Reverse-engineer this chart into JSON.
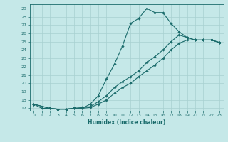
{
  "title": "",
  "xlabel": "Humidex (Indice chaleur)",
  "bg_color": "#c5e8e8",
  "line_color": "#1a6b6b",
  "grid_color": "#a8d0d0",
  "xlim": [
    -0.5,
    23.5
  ],
  "ylim": [
    16.7,
    29.5
  ],
  "xticks": [
    0,
    1,
    2,
    3,
    4,
    5,
    6,
    7,
    8,
    9,
    10,
    11,
    12,
    13,
    14,
    15,
    16,
    17,
    18,
    19,
    20,
    21,
    22,
    23
  ],
  "yticks": [
    17,
    18,
    19,
    20,
    21,
    22,
    23,
    24,
    25,
    26,
    27,
    28,
    29
  ],
  "line1_x": [
    0,
    1,
    2,
    3,
    4,
    5,
    6,
    7,
    8,
    9,
    10,
    11,
    12,
    13,
    14,
    15,
    16,
    17,
    18,
    19,
    20,
    21,
    22,
    23
  ],
  "line1_y": [
    17.5,
    17.0,
    17.0,
    16.9,
    16.9,
    17.0,
    17.0,
    17.5,
    18.5,
    20.5,
    22.3,
    24.5,
    27.2,
    27.8,
    29.0,
    28.5,
    28.5,
    27.2,
    26.2,
    25.5,
    25.2,
    25.2,
    25.2,
    24.9
  ],
  "line2_x": [
    0,
    2,
    3,
    4,
    5,
    6,
    7,
    8,
    9,
    10,
    11,
    12,
    13,
    14,
    15,
    16,
    17,
    18,
    19,
    20,
    21,
    22,
    23
  ],
  "line2_y": [
    17.5,
    17.0,
    16.9,
    16.9,
    17.0,
    17.1,
    17.2,
    17.8,
    18.5,
    19.5,
    20.2,
    20.8,
    21.5,
    22.5,
    23.2,
    24.0,
    25.0,
    25.8,
    25.5,
    25.2,
    25.2,
    25.2,
    24.9
  ],
  "line3_x": [
    0,
    2,
    3,
    4,
    5,
    6,
    7,
    8,
    9,
    10,
    11,
    12,
    13,
    14,
    15,
    16,
    17,
    18,
    19,
    20,
    21,
    22,
    23
  ],
  "line3_y": [
    17.5,
    17.0,
    16.9,
    16.9,
    17.0,
    17.0,
    17.1,
    17.5,
    18.0,
    18.8,
    19.5,
    20.0,
    20.8,
    21.5,
    22.2,
    23.0,
    24.0,
    24.8,
    25.2,
    25.2,
    25.2,
    25.2,
    24.9
  ]
}
